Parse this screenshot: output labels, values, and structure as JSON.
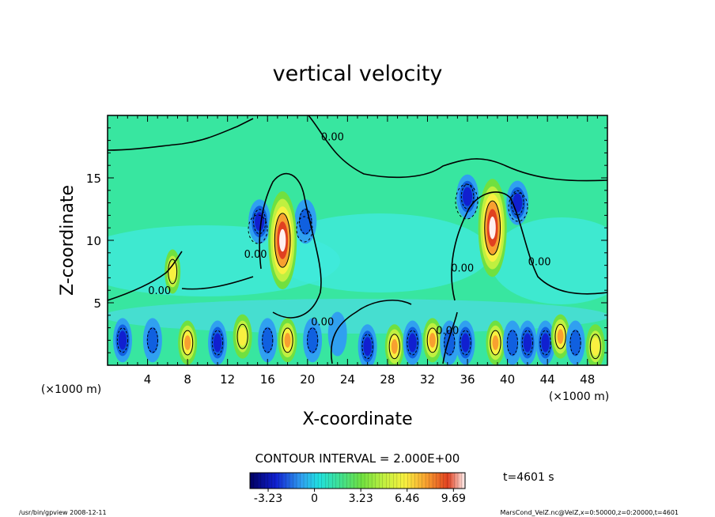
{
  "chart_data": {
    "type": "heatmap",
    "title": "vertical velocity",
    "xlabel": "X-coordinate",
    "ylabel": "Z-coordinate",
    "x_unit_label_left": "(×1000 m)",
    "x_unit_label_right": "(×1000 m)",
    "xlim": [
      0,
      50
    ],
    "ylim": [
      0,
      20
    ],
    "x_ticks": [
      4,
      8,
      12,
      16,
      20,
      24,
      28,
      32,
      36,
      40,
      44,
      48
    ],
    "y_ticks": [
      5,
      10,
      15
    ],
    "contour_interval_text": "CONTOUR INTERVAL = 2.000E+00",
    "contour_labels": [
      {
        "text": "0.00",
        "x": 5.2,
        "z": 5.7
      },
      {
        "text": "0.00",
        "x": 14.8,
        "z": 8.6
      },
      {
        "text": "0.00",
        "x": 21.5,
        "z": 3.2
      },
      {
        "text": "0.00",
        "x": 22.5,
        "z": 18.0
      },
      {
        "text": "0.00",
        "x": 34.0,
        "z": 2.5
      },
      {
        "text": "0.00",
        "x": 35.5,
        "z": 7.5
      },
      {
        "text": "0.00",
        "x": 43.2,
        "z": 8.0
      }
    ],
    "colorbar": {
      "min": -4.5,
      "max": 10.5,
      "tick_labels": [
        "-3.23",
        "0",
        "3.23",
        "6.46",
        "9.69"
      ],
      "tick_values": [
        -3.23,
        0,
        3.23,
        6.46,
        9.69
      ]
    },
    "updrafts": [
      {
        "x": 17.5,
        "z": 10.0,
        "value": 10.0
      },
      {
        "x": 38.5,
        "z": 11.0,
        "value": 12.0
      },
      {
        "x": 6.5,
        "z": 7.5,
        "value": 3.0
      }
    ],
    "downdrafts": [
      {
        "x": 15.2,
        "z": 11.5,
        "value": -3.0
      },
      {
        "x": 19.8,
        "z": 11.5,
        "value": -2.5
      },
      {
        "x": 36.0,
        "z": 13.5,
        "value": -3.5
      },
      {
        "x": 41.0,
        "z": 13.0,
        "value": -3.0
      }
    ],
    "lower_cells": [
      {
        "x": 1.5,
        "z": 2.0,
        "value": -3.5
      },
      {
        "x": 4.5,
        "z": 2.0,
        "value": -2.5
      },
      {
        "x": 8.0,
        "z": 1.8,
        "value": 6.0
      },
      {
        "x": 11.0,
        "z": 1.8,
        "value": -3.0
      },
      {
        "x": 13.5,
        "z": 2.3,
        "value": 3.0
      },
      {
        "x": 16.0,
        "z": 2.0,
        "value": -2.5
      },
      {
        "x": 18.0,
        "z": 2.0,
        "value": 5.0
      },
      {
        "x": 20.5,
        "z": 2.0,
        "value": -2.0
      },
      {
        "x": 23.0,
        "z": 2.5,
        "value": -1.5
      },
      {
        "x": 26.0,
        "z": 1.5,
        "value": -3.0
      },
      {
        "x": 28.7,
        "z": 1.5,
        "value": 5.5
      },
      {
        "x": 30.5,
        "z": 1.8,
        "value": -3.0
      },
      {
        "x": 32.5,
        "z": 2.0,
        "value": 6.0
      },
      {
        "x": 34.2,
        "z": 1.8,
        "value": -2.5
      },
      {
        "x": 35.8,
        "z": 1.8,
        "value": -3.5
      },
      {
        "x": 38.8,
        "z": 1.8,
        "value": 5.5
      },
      {
        "x": 40.5,
        "z": 1.8,
        "value": -2.5
      },
      {
        "x": 42.0,
        "z": 1.8,
        "value": -3.0
      },
      {
        "x": 43.8,
        "z": 1.8,
        "value": -3.5
      },
      {
        "x": 45.3,
        "z": 2.3,
        "value": 5.0
      },
      {
        "x": 46.8,
        "z": 1.8,
        "value": -2.5
      },
      {
        "x": 48.8,
        "z": 1.5,
        "value": 4.0
      }
    ]
  },
  "time_label": "t=4601 s",
  "footer_left": "/usr/bin/gpview   2008-12-11",
  "footer_right": "MarsCond_VelZ.nc@VelZ,x=0:50000,z=0:20000,t=4601",
  "colors": {
    "background_field": "#38e6a0",
    "frame": "#000000"
  }
}
